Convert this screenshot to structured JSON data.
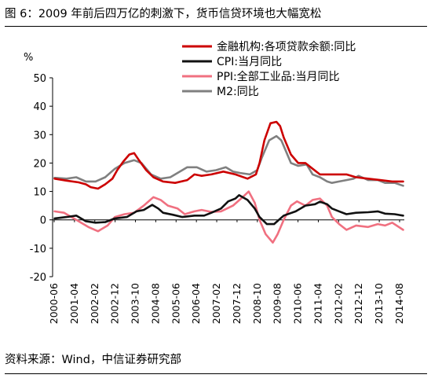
{
  "figure": {
    "title": "图 6：2009 年前后四万亿的刺激下，货币信贷环境也大幅宽松",
    "source": "资料来源：Wind，中信证券研究部"
  },
  "chart_data": {
    "type": "line",
    "ylabel": "%",
    "ylim": [
      -20,
      50
    ],
    "yticks": [
      -20,
      -10,
      0,
      10,
      20,
      30,
      40,
      50
    ],
    "xlim": [
      2000.42,
      2015.0
    ],
    "xtick_labels": [
      "2000-06",
      "2001-04",
      "2002-02",
      "2002-12",
      "2003-10",
      "2004-08",
      "2005-06",
      "2006-04",
      "2007-02",
      "2007-12",
      "2008-10",
      "2009-08",
      "2010-06",
      "2011-04",
      "2012-02",
      "2012-12",
      "2013-10",
      "2014-08"
    ],
    "grid": false,
    "legend_position": "top-right",
    "series": [
      {
        "name": "金融机构:各项贷款余额:同比",
        "color": "#cc0000",
        "points": [
          [
            2000.5,
            14.5
          ],
          [
            2001.0,
            13.8
          ],
          [
            2001.5,
            13.2
          ],
          [
            2001.8,
            12.5
          ],
          [
            2002.0,
            11.5
          ],
          [
            2002.3,
            11.0
          ],
          [
            2002.6,
            12.5
          ],
          [
            2002.9,
            14.5
          ],
          [
            2003.1,
            17.5
          ],
          [
            2003.35,
            20.5
          ],
          [
            2003.6,
            23.0
          ],
          [
            2003.8,
            23.5
          ],
          [
            2004.0,
            21.0
          ],
          [
            2004.3,
            17.5
          ],
          [
            2004.6,
            15.0
          ],
          [
            2005.0,
            13.5
          ],
          [
            2005.5,
            13.0
          ],
          [
            2006.0,
            14.0
          ],
          [
            2006.3,
            16.0
          ],
          [
            2006.6,
            15.5
          ],
          [
            2007.0,
            16.0
          ],
          [
            2007.5,
            17.0
          ],
          [
            2008.0,
            16.0
          ],
          [
            2008.5,
            14.5
          ],
          [
            2008.85,
            16.0
          ],
          [
            2009.0,
            20.0
          ],
          [
            2009.2,
            28.0
          ],
          [
            2009.45,
            34.0
          ],
          [
            2009.7,
            34.5
          ],
          [
            2009.85,
            33.0
          ],
          [
            2010.0,
            29.0
          ],
          [
            2010.3,
            23.0
          ],
          [
            2010.6,
            20.0
          ],
          [
            2010.9,
            20.0
          ],
          [
            2011.2,
            18.0
          ],
          [
            2011.5,
            16.0
          ],
          [
            2011.9,
            16.0
          ],
          [
            2012.2,
            16.0
          ],
          [
            2012.6,
            16.0
          ],
          [
            2013.0,
            15.0
          ],
          [
            2013.5,
            14.5
          ],
          [
            2014.0,
            14.0
          ],
          [
            2014.5,
            13.5
          ],
          [
            2014.95,
            13.5
          ]
        ]
      },
      {
        "name": "CPI:当月同比",
        "color": "#111111",
        "points": [
          [
            2000.5,
            0.5
          ],
          [
            2001.0,
            1.0
          ],
          [
            2001.4,
            1.5
          ],
          [
            2001.8,
            -0.5
          ],
          [
            2002.2,
            -1.0
          ],
          [
            2002.6,
            -0.8
          ],
          [
            2003.0,
            0.5
          ],
          [
            2003.5,
            1.0
          ],
          [
            2003.9,
            3.0
          ],
          [
            2004.2,
            3.5
          ],
          [
            2004.55,
            5.3
          ],
          [
            2004.8,
            4.0
          ],
          [
            2005.0,
            2.5
          ],
          [
            2005.4,
            1.8
          ],
          [
            2005.8,
            1.0
          ],
          [
            2006.3,
            1.5
          ],
          [
            2006.7,
            1.5
          ],
          [
            2007.0,
            2.5
          ],
          [
            2007.4,
            4.0
          ],
          [
            2007.7,
            6.5
          ],
          [
            2008.0,
            7.5
          ],
          [
            2008.15,
            8.7
          ],
          [
            2008.5,
            7.0
          ],
          [
            2008.8,
            4.0
          ],
          [
            2009.0,
            1.0
          ],
          [
            2009.3,
            -1.5
          ],
          [
            2009.6,
            -1.5
          ],
          [
            2009.8,
            0.0
          ],
          [
            2010.0,
            1.5
          ],
          [
            2010.5,
            3.0
          ],
          [
            2010.9,
            5.0
          ],
          [
            2011.3,
            5.5
          ],
          [
            2011.5,
            6.4
          ],
          [
            2011.8,
            5.5
          ],
          [
            2012.0,
            4.0
          ],
          [
            2012.3,
            3.0
          ],
          [
            2012.6,
            2.0
          ],
          [
            2013.0,
            2.5
          ],
          [
            2013.5,
            2.7
          ],
          [
            2013.9,
            3.0
          ],
          [
            2014.2,
            2.2
          ],
          [
            2014.6,
            2.0
          ],
          [
            2014.95,
            1.5
          ]
        ]
      },
      {
        "name": "PPI:全部工业品:当月同比",
        "color": "#f07080",
        "points": [
          [
            2000.5,
            3.0
          ],
          [
            2000.9,
            2.5
          ],
          [
            2001.2,
            1.0
          ],
          [
            2001.5,
            -0.5
          ],
          [
            2001.9,
            -2.5
          ],
          [
            2002.3,
            -4.0
          ],
          [
            2002.7,
            -2.0
          ],
          [
            2003.0,
            1.0
          ],
          [
            2003.4,
            2.0
          ],
          [
            2003.8,
            2.5
          ],
          [
            2004.2,
            5.0
          ],
          [
            2004.6,
            8.0
          ],
          [
            2004.9,
            7.0
          ],
          [
            2005.2,
            5.0
          ],
          [
            2005.6,
            4.0
          ],
          [
            2005.9,
            2.0
          ],
          [
            2006.3,
            3.0
          ],
          [
            2006.6,
            3.5
          ],
          [
            2007.0,
            2.8
          ],
          [
            2007.4,
            3.0
          ],
          [
            2007.9,
            5.0
          ],
          [
            2008.3,
            8.0
          ],
          [
            2008.55,
            10.0
          ],
          [
            2008.8,
            6.0
          ],
          [
            2009.0,
            0.0
          ],
          [
            2009.25,
            -5.0
          ],
          [
            2009.55,
            -8.0
          ],
          [
            2009.75,
            -5.0
          ],
          [
            2010.0,
            0.0
          ],
          [
            2010.3,
            5.0
          ],
          [
            2010.55,
            6.5
          ],
          [
            2010.9,
            5.0
          ],
          [
            2011.2,
            7.0
          ],
          [
            2011.5,
            7.5
          ],
          [
            2011.8,
            5.0
          ],
          [
            2012.0,
            1.0
          ],
          [
            2012.3,
            -1.5
          ],
          [
            2012.6,
            -3.5
          ],
          [
            2013.0,
            -2.0
          ],
          [
            2013.5,
            -2.5
          ],
          [
            2013.9,
            -1.5
          ],
          [
            2014.2,
            -2.0
          ],
          [
            2014.5,
            -1.0
          ],
          [
            2014.95,
            -3.5
          ]
        ]
      },
      {
        "name": "M2:同比",
        "color": "#808080",
        "points": [
          [
            2000.5,
            14.8
          ],
          [
            2001.0,
            14.5
          ],
          [
            2001.4,
            15.0
          ],
          [
            2001.8,
            13.5
          ],
          [
            2002.2,
            13.5
          ],
          [
            2002.6,
            15.0
          ],
          [
            2003.0,
            18.0
          ],
          [
            2003.4,
            20.0
          ],
          [
            2003.8,
            21.0
          ],
          [
            2004.1,
            20.0
          ],
          [
            2004.5,
            16.0
          ],
          [
            2004.9,
            14.5
          ],
          [
            2005.3,
            15.0
          ],
          [
            2005.7,
            17.0
          ],
          [
            2006.0,
            18.5
          ],
          [
            2006.4,
            18.5
          ],
          [
            2006.8,
            17.0
          ],
          [
            2007.2,
            17.5
          ],
          [
            2007.6,
            18.5
          ],
          [
            2007.9,
            17.0
          ],
          [
            2008.2,
            16.5
          ],
          [
            2008.6,
            16.0
          ],
          [
            2008.9,
            17.5
          ],
          [
            2009.1,
            22.0
          ],
          [
            2009.4,
            28.0
          ],
          [
            2009.7,
            29.5
          ],
          [
            2009.9,
            28.0
          ],
          [
            2010.0,
            26.0
          ],
          [
            2010.3,
            20.0
          ],
          [
            2010.6,
            19.0
          ],
          [
            2010.95,
            19.5
          ],
          [
            2011.2,
            16.0
          ],
          [
            2011.5,
            15.0
          ],
          [
            2011.8,
            13.5
          ],
          [
            2012.0,
            13.0
          ],
          [
            2012.3,
            13.5
          ],
          [
            2012.6,
            14.0
          ],
          [
            2012.9,
            14.5
          ],
          [
            2013.1,
            15.5
          ],
          [
            2013.5,
            14.0
          ],
          [
            2013.9,
            14.0
          ],
          [
            2014.2,
            13.0
          ],
          [
            2014.6,
            13.0
          ],
          [
            2014.95,
            12.0
          ]
        ]
      }
    ]
  }
}
